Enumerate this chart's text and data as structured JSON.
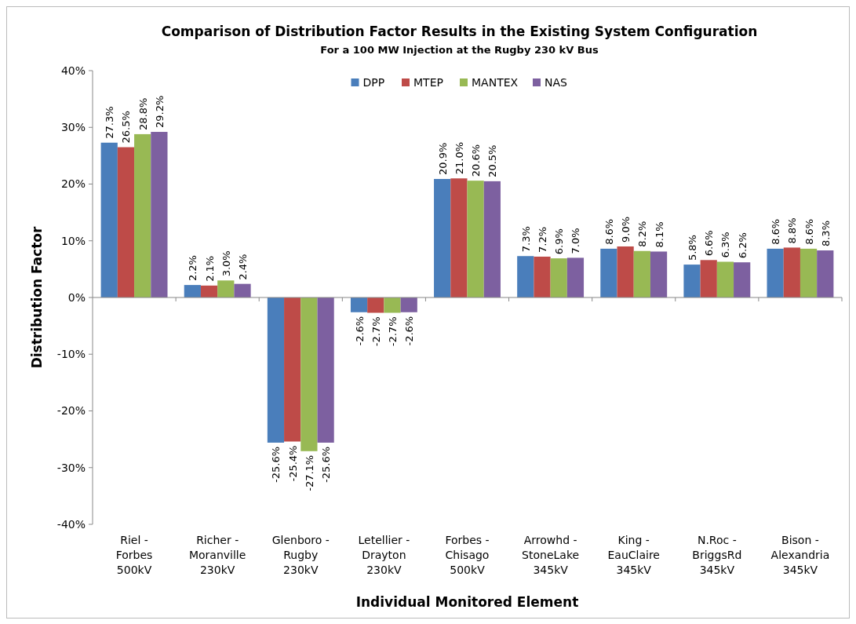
{
  "chart_data": {
    "type": "bar",
    "title": "Comparison of Distribution Factor Results in the Existing System Configuration",
    "subtitle": "For a 100 MW Injection at the Rugby 230 kV Bus",
    "xlabel": "Individual Monitored Element",
    "ylabel": "Distribution Factor",
    "categories": [
      "Riel -\nForbes\n500kV",
      "Richer -\nMoranville\n230kV",
      "Glenboro -\nRugby\n230kV",
      "Letellier -\nDrayton\n230kV",
      "Forbes -\nChisago\n500kV",
      "Arrowhd -\nStoneLake\n345kV",
      "King -\nEauClaire\n345kV",
      "N.Roc -\nBriggsRd\n345kV",
      "Bison -\nAlexandria\n345kV"
    ],
    "series": [
      {
        "name": "DPP",
        "color": "#4a7ebb",
        "values": [
          27.3,
          2.2,
          -25.6,
          -2.6,
          20.9,
          7.3,
          8.6,
          5.8,
          8.6
        ],
        "value_labels": [
          "27.3%",
          "2.2%",
          "-25.6%",
          "-2.6%",
          "20.9%",
          "7.3%",
          "8.6%",
          "5.8%",
          "8.6%"
        ]
      },
      {
        "name": "MTEP",
        "color": "#be4b48",
        "values": [
          26.5,
          2.1,
          -25.4,
          -2.7,
          21.0,
          7.2,
          9.0,
          6.6,
          8.8
        ],
        "value_labels": [
          "26.5%",
          "2.1%",
          "-25.4%",
          "-2.7%",
          "21.0%",
          "7.2%",
          "9.0%",
          "6.6%",
          "8.8%"
        ]
      },
      {
        "name": "MANTEX",
        "color": "#98b954",
        "values": [
          28.8,
          3.0,
          -27.1,
          -2.7,
          20.6,
          6.9,
          8.2,
          6.3,
          8.6
        ],
        "value_labels": [
          "28.8%",
          "3.0%",
          "-27.1%",
          "-2.7%",
          "20.6%",
          "6.9%",
          "8.2%",
          "6.3%",
          "8.6%"
        ]
      },
      {
        "name": "NAS",
        "color": "#7d60a0",
        "values": [
          29.2,
          2.4,
          -25.6,
          -2.6,
          20.5,
          7.0,
          8.1,
          6.2,
          8.3
        ],
        "value_labels": [
          "29.2%",
          "2.4%",
          "-25.6%",
          "-2.6%",
          "20.5%",
          "7.0%",
          "8.1%",
          "6.2%",
          "8.3%"
        ]
      }
    ],
    "ylim": [
      -40,
      40
    ],
    "yticks": [
      {
        "value": -40,
        "label": "-40%"
      },
      {
        "value": -30,
        "label": "-30%"
      },
      {
        "value": -20,
        "label": "-20%"
      },
      {
        "value": -10,
        "label": "-10%"
      },
      {
        "value": 0,
        "label": "0%"
      },
      {
        "value": 10,
        "label": "10%"
      },
      {
        "value": 20,
        "label": "20%"
      },
      {
        "value": 30,
        "label": "30%"
      },
      {
        "value": 40,
        "label": "40%"
      }
    ],
    "legend": "top"
  }
}
